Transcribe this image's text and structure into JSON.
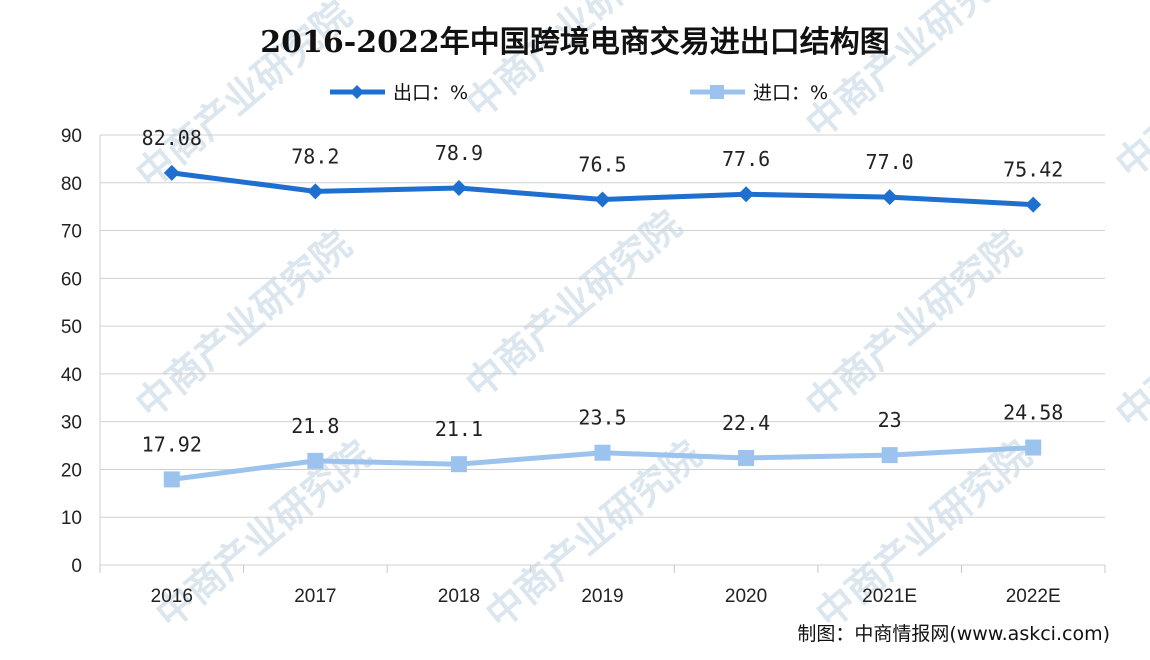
{
  "chart_data": {
    "type": "line",
    "title": "2016-2022年中国跨境电商交易进出口结构图",
    "categories": [
      "2016",
      "2017",
      "2018",
      "2019",
      "2020",
      "2021E",
      "2022E"
    ],
    "series": [
      {
        "name": "出口：%",
        "color": "#1f6fd1",
        "marker": "diamond",
        "values": [
          82.08,
          78.2,
          78.9,
          76.5,
          77.6,
          77.0,
          75.42
        ],
        "labels": [
          "82.08",
          "78.2",
          "78.9",
          "76.5",
          "77.6",
          "77.0",
          "75.42"
        ]
      },
      {
        "name": "进口：%",
        "color": "#9cc3ee",
        "marker": "square",
        "values": [
          17.92,
          21.8,
          21.1,
          23.5,
          22.4,
          23,
          24.58
        ],
        "labels": [
          "17.92",
          "21.8",
          "21.1",
          "23.5",
          "22.4",
          "23",
          "24.58"
        ]
      }
    ],
    "ylim": [
      0,
      90
    ],
    "yticks": [
      0,
      10,
      20,
      30,
      40,
      50,
      60,
      70,
      80,
      90
    ],
    "grid": true,
    "legend_position": "top"
  },
  "source": "制图：中商情报网(www.askci.com)",
  "watermark": "中商产业研究院"
}
